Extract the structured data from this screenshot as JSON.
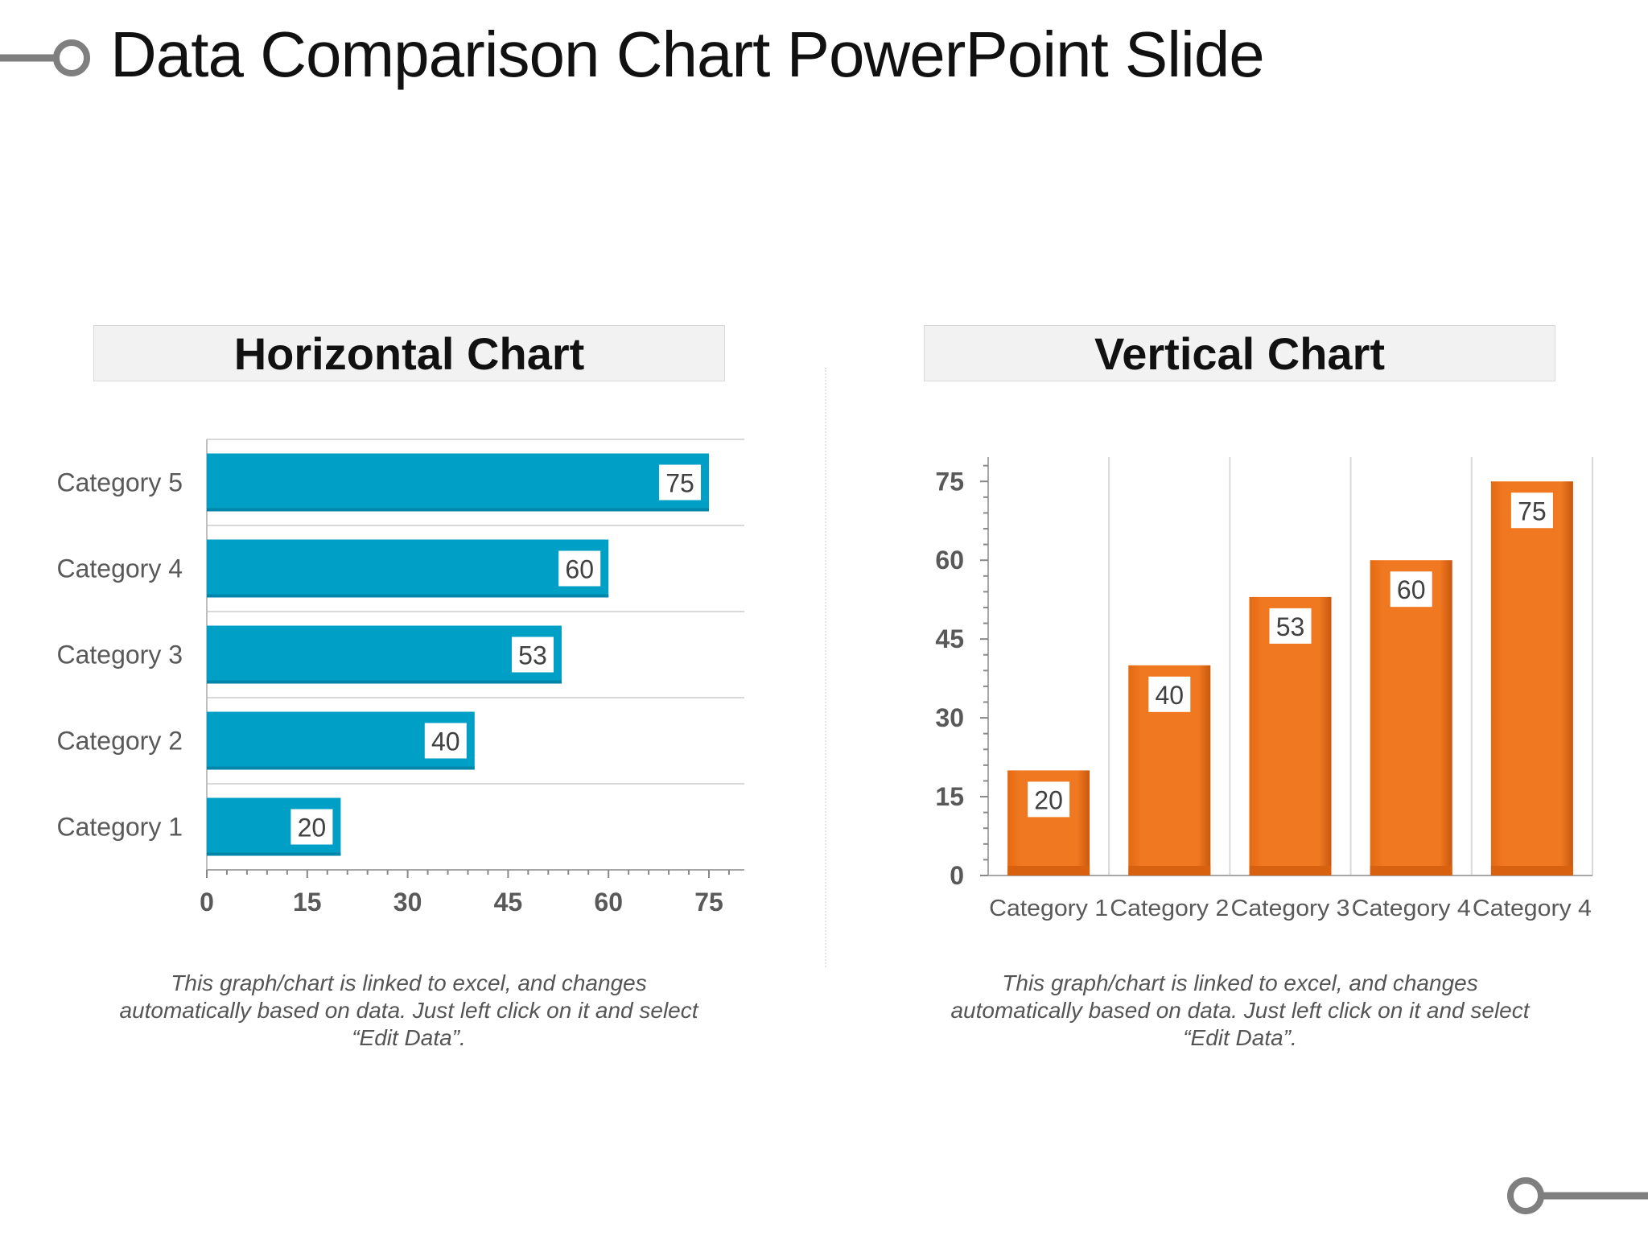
{
  "slide": {
    "title": "Data Comparison Chart PowerPoint Slide",
    "connector_icon": "line-circle-connector"
  },
  "colors": {
    "horizontal_bar": "#00a0c6",
    "vertical_bar": "#f07820",
    "header_bg": "#f2f2f2",
    "connector": "#7f7f7f"
  },
  "chart_data": [
    {
      "type": "bar",
      "orientation": "horizontal",
      "title": "Horizontal Chart",
      "categories": [
        "Category 1",
        "Category 2",
        "Category 3",
        "Category 4",
        "Category 5"
      ],
      "values": [
        20,
        40,
        53,
        60,
        75
      ],
      "data_labels": [
        "20",
        "40",
        "53",
        "60",
        "75"
      ],
      "xlim": [
        0,
        80
      ],
      "x_ticks": [
        "0",
        "15",
        "30",
        "45",
        "60",
        "75"
      ],
      "grid": "horizontal category separators",
      "caption": [
        "This graph/chart is linked to excel, and changes",
        "automatically based on data. Just left click on it and select",
        "“Edit Data”."
      ]
    },
    {
      "type": "bar",
      "orientation": "vertical",
      "title": "Vertical Chart",
      "categories": [
        "Category 1",
        "Category 2",
        "Category 3",
        "Category 4",
        "Category 4"
      ],
      "values": [
        20,
        40,
        53,
        60,
        75
      ],
      "data_labels": [
        "20",
        "40",
        "53",
        "60",
        "75"
      ],
      "ylim": [
        0,
        80
      ],
      "y_ticks": [
        "0",
        "15",
        "30",
        "45",
        "60",
        "75"
      ],
      "grid": "vertical category separators",
      "caption": [
        "This graph/chart is linked to excel, and changes",
        "automatically based on data. Just left click on it and select",
        "“Edit Data”."
      ]
    }
  ]
}
